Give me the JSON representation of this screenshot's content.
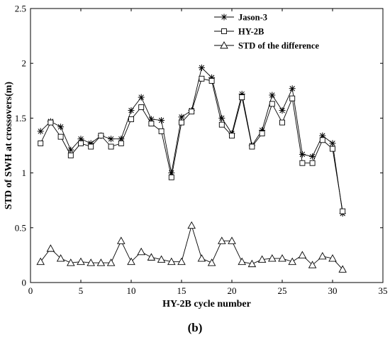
{
  "panel_label": "(b)",
  "chart_data": {
    "type": "line",
    "xlabel": "HY-2B cycle number",
    "ylabel": "STD of SWH at crossovers(m)",
    "xlim": [
      0,
      35
    ],
    "ylim": [
      0,
      2.5
    ],
    "xticks": [
      0,
      5,
      10,
      15,
      20,
      25,
      30,
      35
    ],
    "yticks": [
      0,
      0.5,
      1,
      1.5,
      2,
      2.5
    ],
    "ytick_labels": [
      "0",
      "0.5",
      "1",
      "1.5",
      "2",
      "2.5"
    ],
    "legend_position": "top-right",
    "grid": false,
    "x": [
      1,
      2,
      3,
      4,
      5,
      6,
      7,
      8,
      9,
      10,
      11,
      12,
      13,
      14,
      15,
      16,
      17,
      18,
      19,
      20,
      21,
      22,
      23,
      24,
      25,
      26,
      27,
      28,
      29,
      30,
      31
    ],
    "series": [
      {
        "name": "Jason-3",
        "marker": "asterisk",
        "values": [
          1.38,
          1.47,
          1.42,
          1.21,
          1.31,
          1.27,
          1.34,
          1.31,
          1.31,
          1.57,
          1.69,
          1.49,
          1.48,
          1.0,
          1.51,
          1.57,
          1.96,
          1.87,
          1.5,
          1.36,
          1.72,
          1.25,
          1.39,
          1.71,
          1.57,
          1.77,
          1.17,
          1.15,
          1.34,
          1.27,
          0.63
        ]
      },
      {
        "name": "HY-2B",
        "marker": "square",
        "values": [
          1.27,
          1.46,
          1.33,
          1.16,
          1.27,
          1.24,
          1.34,
          1.24,
          1.27,
          1.49,
          1.6,
          1.45,
          1.38,
          0.96,
          1.46,
          1.56,
          1.86,
          1.84,
          1.44,
          1.34,
          1.69,
          1.24,
          1.36,
          1.63,
          1.46,
          1.68,
          1.09,
          1.09,
          1.3,
          1.22,
          0.65
        ]
      },
      {
        "name": "STD of the difference",
        "marker": "triangle",
        "values": [
          0.19,
          0.31,
          0.22,
          0.18,
          0.19,
          0.18,
          0.18,
          0.18,
          0.38,
          0.19,
          0.28,
          0.23,
          0.21,
          0.19,
          0.19,
          0.52,
          0.22,
          0.18,
          0.38,
          0.38,
          0.19,
          0.17,
          0.21,
          0.22,
          0.22,
          0.19,
          0.25,
          0.16,
          0.24,
          0.22,
          0.12
        ]
      }
    ]
  }
}
